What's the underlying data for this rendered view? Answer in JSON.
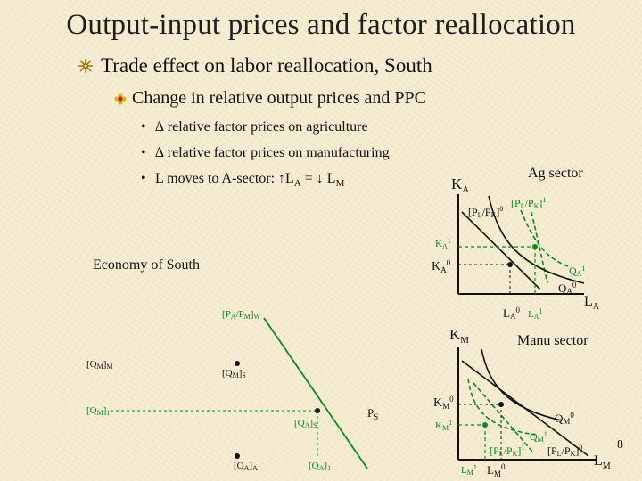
{
  "slide": {
    "title": "Output-input prices and factor reallocation",
    "level1": "Trade effect on labor reallocation, South",
    "level2": "Change in relative output prices and PPC",
    "bullets": [
      {
        "dot": "•",
        "text": "∆ relative factor prices on agriculture"
      },
      {
        "dot": "•",
        "text": "∆ relative factor prices on manufacturing"
      },
      {
        "dot": "•",
        "prefix": "L moves to A-sector: ↑L",
        "sub1": "A",
        "mid": " = ↓ L",
        "sub2": "M"
      }
    ],
    "economy_label": "Economy of South",
    "page_number": "8",
    "colors": {
      "accent_green": "#0b8a1f",
      "bullet_red": "#b03020",
      "bullet_yellow": "#e0b020"
    }
  },
  "ag_panel": {
    "title": "Ag sector",
    "y_axis": "K",
    "y_axis_sub": "A",
    "x_axis": "L",
    "x_axis_sub": "A",
    "ratio0": "[P",
    "ratio0_a": "L",
    "ratio0_b": "/P",
    "ratio0_c": "K",
    "ratio0_d": "]",
    "ratio0_sup": "0",
    "ratio1": "[P",
    "ratio1_a": "L",
    "ratio1_b": "/P",
    "ratio1_c": "K",
    "ratio1_d": "]",
    "ratio1_sup": "1",
    "k1": "K",
    "k1_sub": "A",
    "k1_sup": "1",
    "k0": "K",
    "k0_sub": "A",
    "k0_sup": "0",
    "q1": "Q",
    "q1_sub": "A",
    "q1_sup": "1",
    "q0": "Q",
    "q0_sub": "A",
    "q0_sup": "0",
    "l0": "L",
    "l0_sub": "A",
    "l0_sup": "0",
    "l1": "L",
    "l1_sub": "A",
    "l1_sup": "1"
  },
  "ppc_panel": {
    "price_ratio": "[P",
    "price_ratio_a": "A",
    "price_ratio_b": "/P",
    "price_ratio_c": "M",
    "price_ratio_d": "]",
    "price_ratio_e": "W",
    "qmm": "[Q",
    "qmm_sub": "M",
    "qmm_end": "]",
    "qmm_e": "M",
    "qms": "[Q",
    "qms_sub": "M",
    "qms_end": "]",
    "qms_e": "S",
    "qm1": "[Q",
    "qm1_sub": "M",
    "qm1_end": "]",
    "qm1_e": "1",
    "qas": "[Q",
    "qas_sub": "A",
    "qas_end": "]",
    "qas_e": "S",
    "ps": "P",
    "ps_sub": "S",
    "qaa": "[Q",
    "qaa_sub": "A",
    "qaa_end": "]",
    "qaa_e": "A",
    "qa1": "[Q",
    "qa1_sub": "A",
    "qa1_end": "]",
    "qa1_e": "1"
  },
  "manu_panel": {
    "title": "Manu sector",
    "y_axis": "K",
    "y_axis_sub": "M",
    "x_axis": "L",
    "x_axis_sub": "M",
    "k0": "K",
    "k0_sub": "M",
    "k0_sup": "0",
    "k1": "K",
    "k1_sub": "M",
    "k1_sup": "1",
    "q0": "Q",
    "q0_sub": "M",
    "q0_sup": "0",
    "q1": "Q",
    "q1_sub": "M",
    "q1_sup": "1",
    "ratio1": "[P",
    "ratio1_a": "L",
    "ratio1_b": "/P",
    "ratio1_c": "K",
    "ratio1_d": "]",
    "ratio1_sup": "1",
    "ratio0": "[P",
    "ratio0_a": "L",
    "ratio0_b": "/P",
    "ratio0_c": "K",
    "ratio0_d": "]",
    "ratio0_sup": "0",
    "l1": "L",
    "l1_sub": "M",
    "l1_sup": "1",
    "l0": "L",
    "l0_sub": "M",
    "l0_sup": "0"
  }
}
